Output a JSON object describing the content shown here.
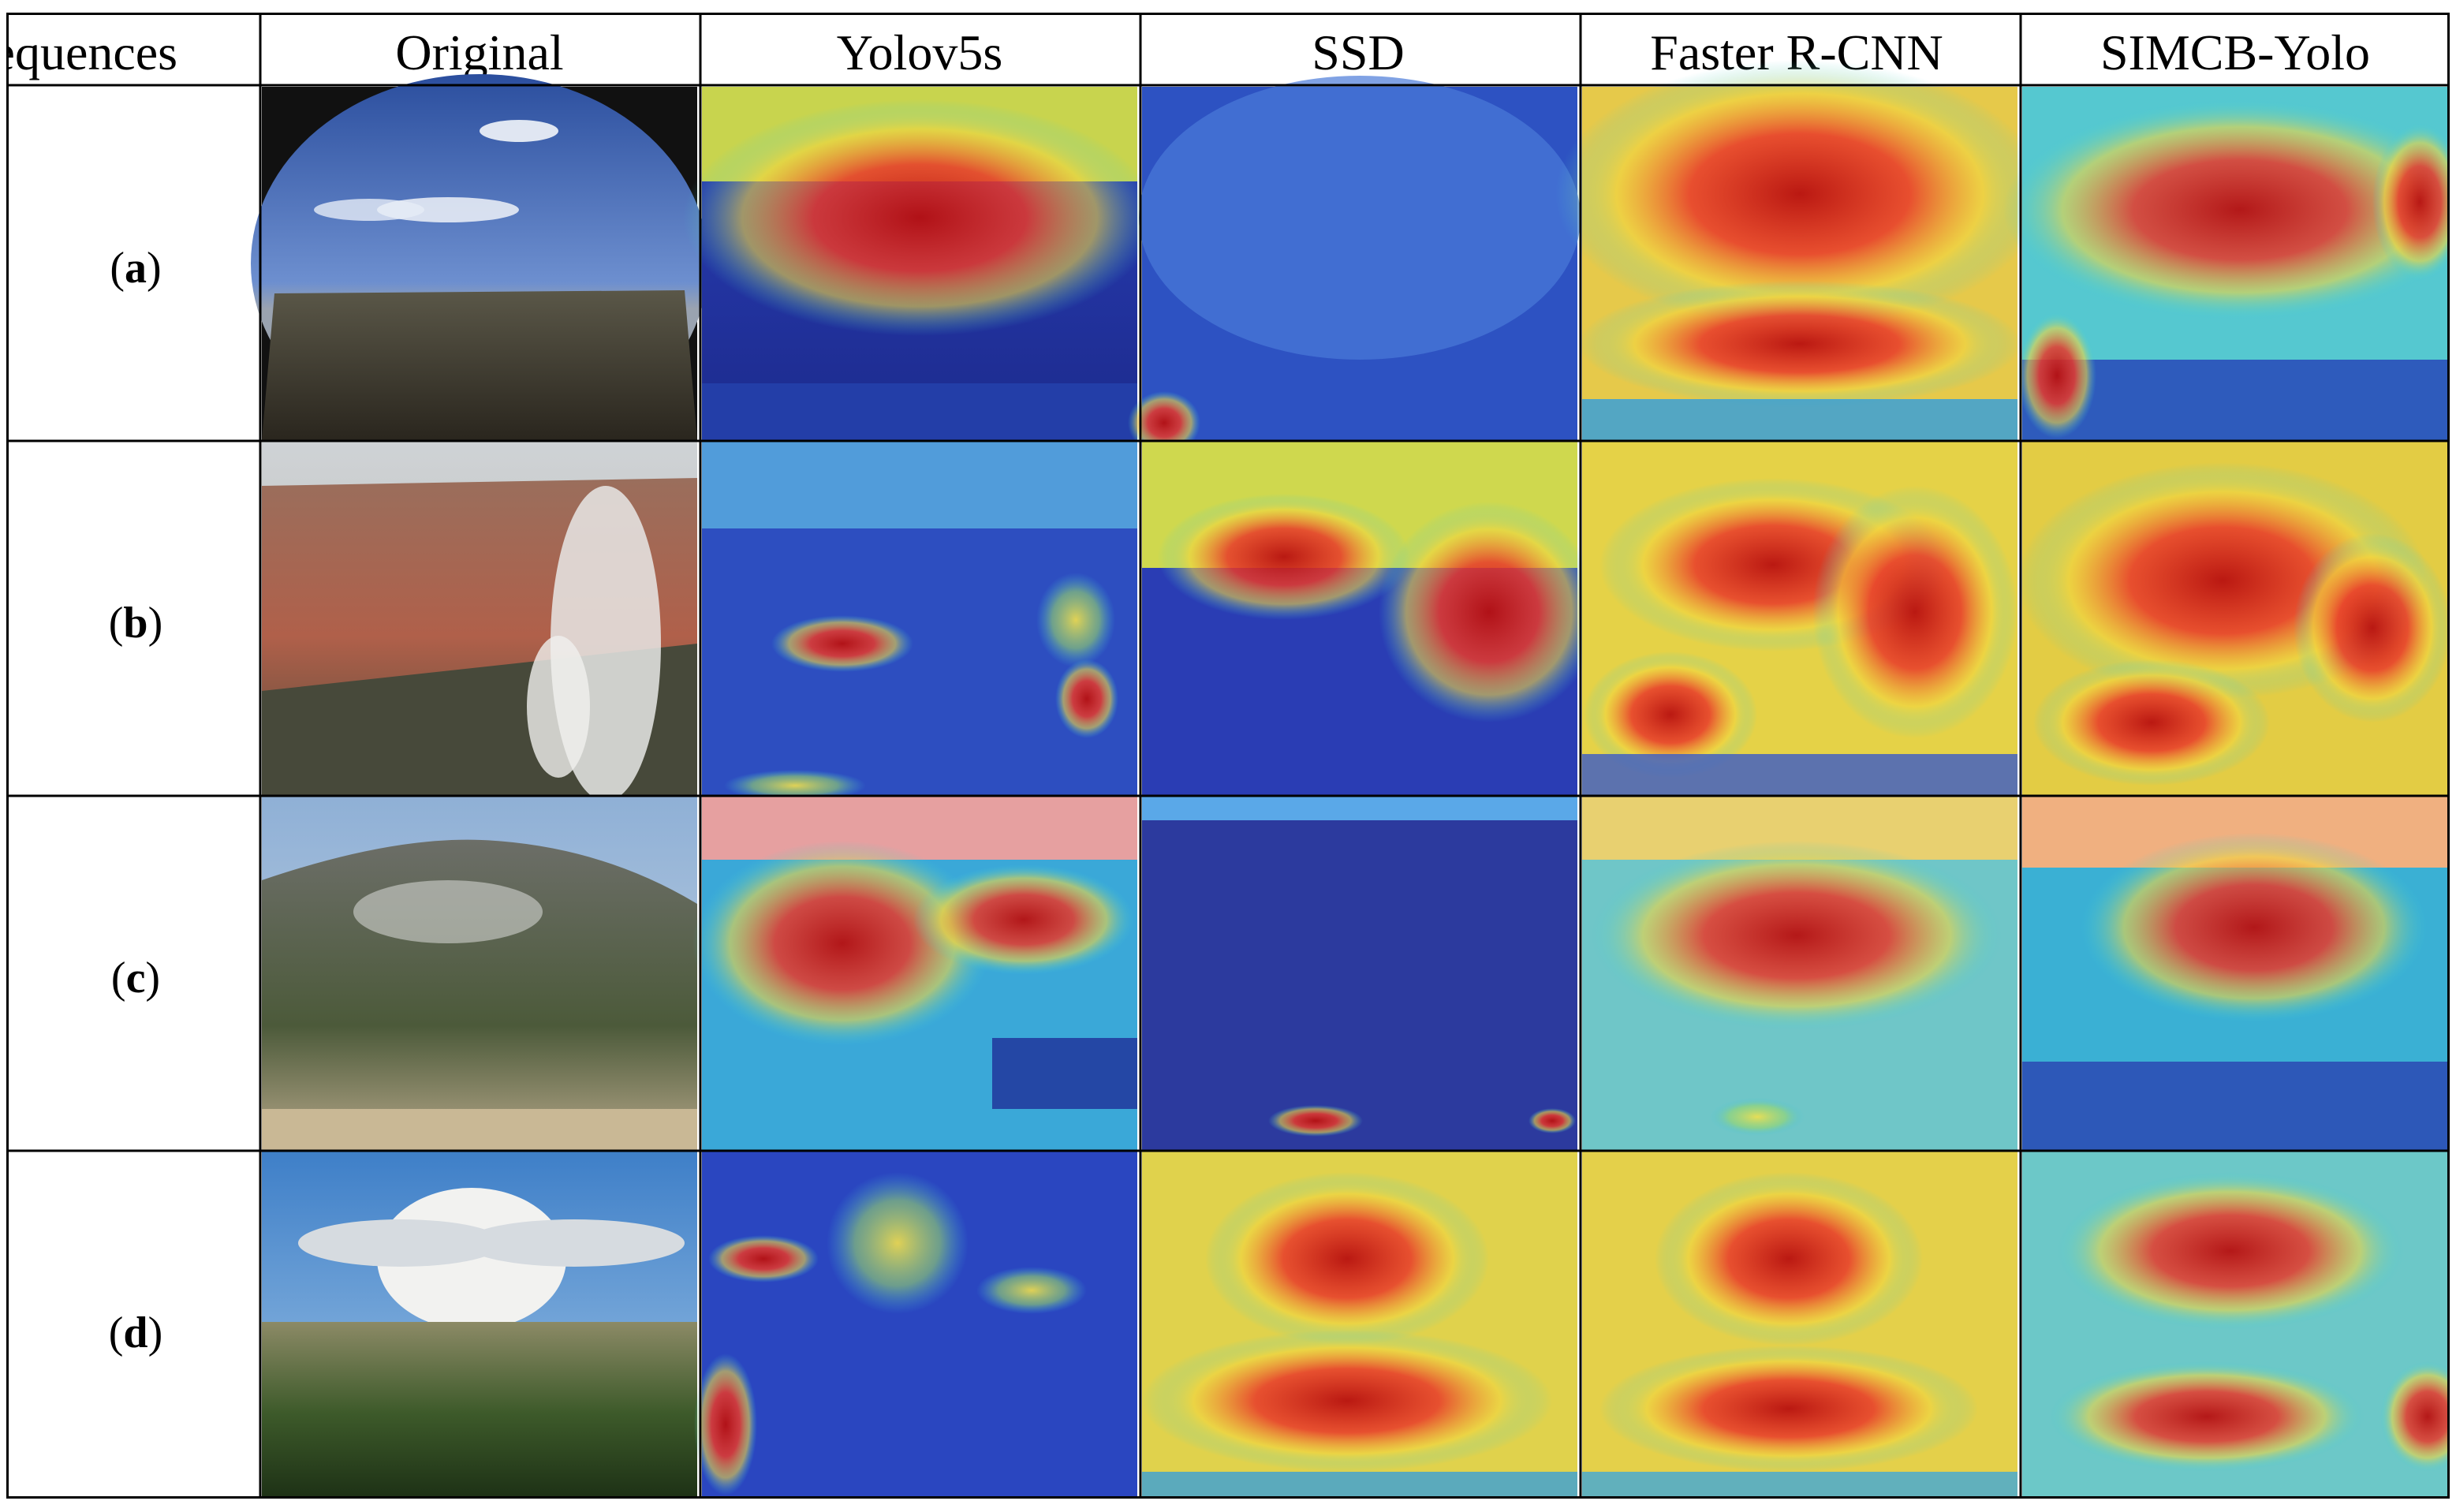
{
  "figure": {
    "header": [
      "Sequences",
      "Original",
      "Yolov5s",
      "SSD",
      "Faster R-CNN",
      "SIMCB-Yolo"
    ],
    "rows": [
      {
        "label": "a",
        "scene": "open-sky-rocky-valley"
      },
      {
        "label": "b",
        "scene": "canyon-with-smoke-plume"
      },
      {
        "label": "c",
        "scene": "forested-hillside-smoke"
      },
      {
        "label": "d",
        "scene": "pyrocumulus-over-forest"
      }
    ],
    "cell_types": [
      "photo",
      "heatmap-overlay",
      "heatmap-overlay",
      "heatmap-overlay",
      "heatmap-overlay"
    ],
    "colors": {
      "grid_line": "#000000",
      "heat_high": "#c81414",
      "heat_mid": "#f0dc3c",
      "heat_low": "#1e1ea0"
    }
  }
}
